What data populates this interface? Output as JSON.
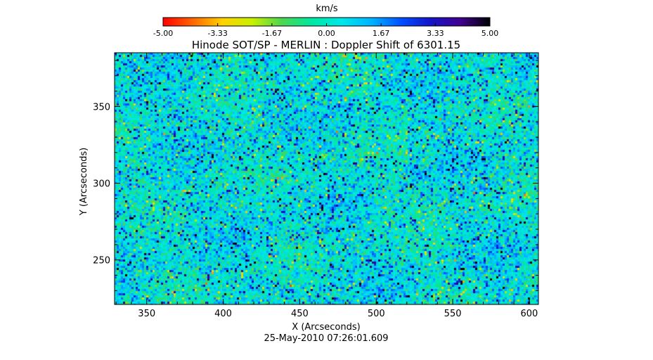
{
  "chart_data": {
    "type": "heatmap",
    "title": "Hinode SOT/SP - MERLIN : Doppler Shift of 6301.15",
    "xlabel": "X (Arcseconds)",
    "ylabel": "Y (Arcseconds)",
    "footer": "25-May-2010 07:26:01.609",
    "xlim": [
      329,
      606
    ],
    "ylim": [
      221,
      385
    ],
    "xticks": [
      350,
      400,
      450,
      500,
      550,
      600
    ],
    "yticks": [
      250,
      300,
      350
    ],
    "colorbar": {
      "unit": "km/s",
      "range": [
        -5.0,
        5.0
      ],
      "tick_values": [
        -5.0,
        -3.33,
        -1.67,
        0.0,
        1.67,
        3.33,
        5.0
      ],
      "tick_labels": [
        "-5.00",
        "-3.33",
        "-1.67",
        "0.00",
        "1.67",
        "3.33",
        "5.00"
      ],
      "colors": [
        "#ff0000",
        "#ff6600",
        "#ffd200",
        "#c8f000",
        "#4cd650",
        "#00e8a0",
        "#00e8e8",
        "#00b4ff",
        "#0050ff",
        "#1414c8",
        "#400090",
        "#000000"
      ]
    },
    "field": {
      "typical_velocity": 0.4,
      "spread": 1.6,
      "dominant_colors": [
        "#33dd66",
        "#00e6b0",
        "#8fe040",
        "#1515cc",
        "#e0e020"
      ]
    }
  }
}
